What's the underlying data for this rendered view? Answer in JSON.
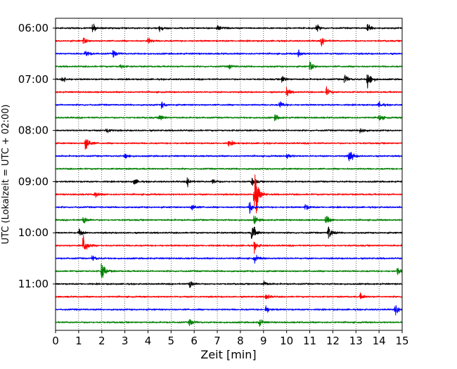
{
  "chart_data": {
    "type": "line",
    "title": "",
    "xlabel": "Zeit  [min]",
    "ylabel": "UTC (Lokalzeit = UTC + 02:00)",
    "xlim": [
      0,
      15
    ],
    "x_ticks": [
      "0",
      "1",
      "2",
      "3",
      "4",
      "5",
      "6",
      "7",
      "8",
      "9",
      "10",
      "11",
      "12",
      "13",
      "14",
      "15"
    ],
    "y_ticks": [
      "06:00",
      "07:00",
      "08:00",
      "09:00",
      "10:00",
      "11:00"
    ],
    "grid_x": "dotted vertical lines at each minute",
    "trace_start_times": [
      "06:00",
      "06:15",
      "06:30",
      "06:45",
      "07:00",
      "07:15",
      "07:30",
      "07:45",
      "08:00",
      "08:15",
      "08:30",
      "08:45",
      "09:00",
      "09:15",
      "09:30",
      "09:45",
      "10:00",
      "10:15",
      "10:30",
      "10:45",
      "11:00",
      "11:15",
      "11:30",
      "11:45"
    ],
    "trace_colors": [
      "#000000",
      "#ff0000",
      "#0000ff",
      "#008000"
    ],
    "events": [
      {
        "trace": 0,
        "t": 1.6,
        "amp": 0.5
      },
      {
        "trace": 0,
        "t": 4.5,
        "amp": 0.4
      },
      {
        "trace": 0,
        "t": 7.0,
        "amp": 0.4
      },
      {
        "trace": 0,
        "t": 11.3,
        "amp": 0.4
      },
      {
        "trace": 0,
        "t": 13.5,
        "amp": 0.5
      },
      {
        "trace": 1,
        "t": 1.2,
        "amp": 0.4
      },
      {
        "trace": 1,
        "t": 4.0,
        "amp": 0.4
      },
      {
        "trace": 1,
        "t": 11.5,
        "amp": 0.5
      },
      {
        "trace": 2,
        "t": 1.3,
        "amp": 0.5
      },
      {
        "trace": 2,
        "t": 2.5,
        "amp": 0.5
      },
      {
        "trace": 2,
        "t": 10.5,
        "amp": 0.5
      },
      {
        "trace": 3,
        "t": 2.8,
        "amp": 0.3
      },
      {
        "trace": 3,
        "t": 7.5,
        "amp": 0.3
      },
      {
        "trace": 3,
        "t": 11.0,
        "amp": 0.6
      },
      {
        "trace": 4,
        "t": 0.3,
        "amp": 0.4
      },
      {
        "trace": 4,
        "t": 9.8,
        "amp": 0.5
      },
      {
        "trace": 4,
        "t": 12.5,
        "amp": 0.6
      },
      {
        "trace": 4,
        "t": 13.5,
        "amp": 1.3
      },
      {
        "trace": 5,
        "t": 10.0,
        "amp": 0.5
      },
      {
        "trace": 5,
        "t": 11.7,
        "amp": 0.6
      },
      {
        "trace": 6,
        "t": 4.6,
        "amp": 0.4
      },
      {
        "trace": 6,
        "t": 9.7,
        "amp": 0.5
      },
      {
        "trace": 6,
        "t": 14.0,
        "amp": 0.4
      },
      {
        "trace": 7,
        "t": 4.5,
        "amp": 0.5
      },
      {
        "trace": 7,
        "t": 9.5,
        "amp": 0.4
      },
      {
        "trace": 7,
        "t": 14.0,
        "amp": 0.5
      },
      {
        "trace": 8,
        "t": 2.2,
        "amp": 0.4
      },
      {
        "trace": 8,
        "t": 13.2,
        "amp": 0.5
      },
      {
        "trace": 9,
        "t": 1.3,
        "amp": 1.3
      },
      {
        "trace": 9,
        "t": 7.5,
        "amp": 0.4
      },
      {
        "trace": 10,
        "t": 3.0,
        "amp": 0.4
      },
      {
        "trace": 10,
        "t": 10.0,
        "amp": 0.4
      },
      {
        "trace": 10,
        "t": 12.7,
        "amp": 1.0
      },
      {
        "trace": 12,
        "t": 3.4,
        "amp": 0.4
      },
      {
        "trace": 12,
        "t": 5.7,
        "amp": 0.5
      },
      {
        "trace": 12,
        "t": 6.8,
        "amp": 0.4
      },
      {
        "trace": 12,
        "t": 8.5,
        "amp": 0.6
      },
      {
        "trace": 13,
        "t": 1.7,
        "amp": 0.4
      },
      {
        "trace": 13,
        "t": 8.6,
        "amp": 4.0
      },
      {
        "trace": 14,
        "t": 5.9,
        "amp": 0.5
      },
      {
        "trace": 14,
        "t": 8.4,
        "amp": 0.8
      },
      {
        "trace": 14,
        "t": 10.8,
        "amp": 0.4
      },
      {
        "trace": 15,
        "t": 1.2,
        "amp": 0.6
      },
      {
        "trace": 15,
        "t": 8.6,
        "amp": 0.5
      },
      {
        "trace": 15,
        "t": 11.7,
        "amp": 0.6
      },
      {
        "trace": 16,
        "t": 1.0,
        "amp": 0.5
      },
      {
        "trace": 16,
        "t": 8.5,
        "amp": 1.3
      },
      {
        "trace": 16,
        "t": 11.8,
        "amp": 1.0
      },
      {
        "trace": 17,
        "t": 1.2,
        "amp": 1.5
      },
      {
        "trace": 17,
        "t": 8.6,
        "amp": 0.6
      },
      {
        "trace": 18,
        "t": 1.6,
        "amp": 0.4
      },
      {
        "trace": 18,
        "t": 8.6,
        "amp": 0.5
      },
      {
        "trace": 19,
        "t": 2.0,
        "amp": 1.3
      },
      {
        "trace": 19,
        "t": 14.8,
        "amp": 0.4
      },
      {
        "trace": 20,
        "t": 5.8,
        "amp": 0.6
      },
      {
        "trace": 20,
        "t": 9.0,
        "amp": 0.4
      },
      {
        "trace": 21,
        "t": 9.1,
        "amp": 0.5
      },
      {
        "trace": 21,
        "t": 13.2,
        "amp": 0.4
      },
      {
        "trace": 22,
        "t": 9.1,
        "amp": 0.5
      },
      {
        "trace": 22,
        "t": 14.7,
        "amp": 0.5
      },
      {
        "trace": 23,
        "t": 5.8,
        "amp": 0.5
      },
      {
        "trace": 23,
        "t": 8.8,
        "amp": 0.5
      }
    ]
  }
}
